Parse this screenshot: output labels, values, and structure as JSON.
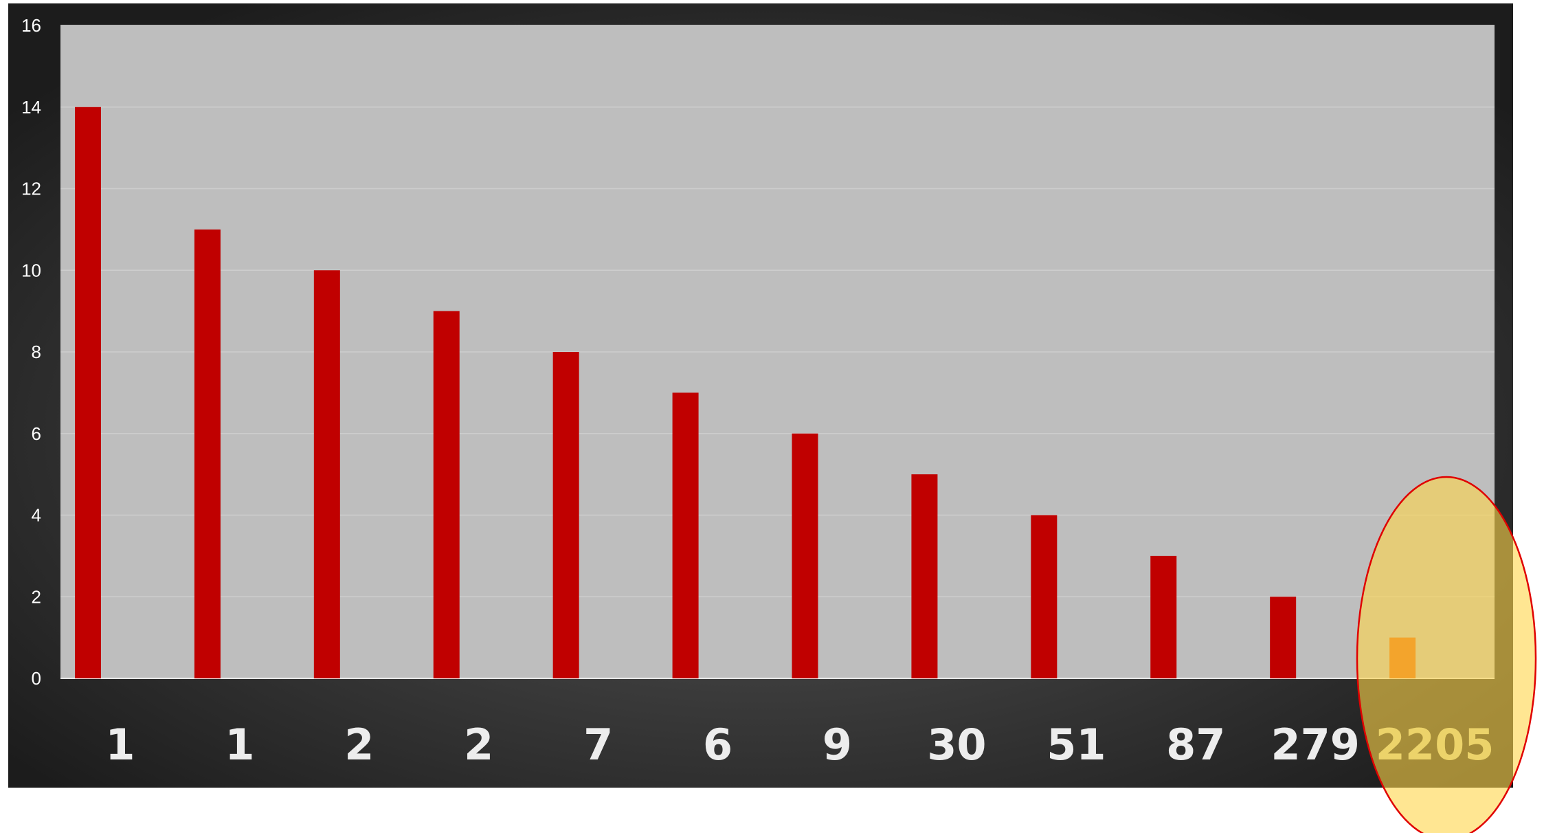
{
  "chart_data": {
    "type": "bar",
    "categories": [
      "1",
      "1",
      "2",
      "2",
      "7",
      "6",
      "9",
      "30",
      "51",
      "87",
      "279",
      "2205"
    ],
    "values": [
      14,
      11,
      10,
      9,
      8,
      7,
      6,
      5,
      4,
      3,
      2,
      1
    ],
    "ylim": [
      0,
      16
    ],
    "yticks": [
      "0",
      "2",
      "4",
      "6",
      "8",
      "10",
      "12",
      "14",
      "16"
    ],
    "grid": true,
    "legend": "none",
    "highlight_index": 11,
    "colors": {
      "frame_center": "#5a5a5a",
      "frame_edge": "#1c1c1c",
      "plot_bg": "#bebebe",
      "gridline": "#cdcdcd",
      "bar": "#c00000",
      "highlight_bar": "#e05a00",
      "highlight_fill": "#ffd54a",
      "highlight_stroke": "#e00000",
      "tick_label": "#ffffff",
      "category_label": "#ededed",
      "highlight_label": "#ecd36a"
    }
  }
}
